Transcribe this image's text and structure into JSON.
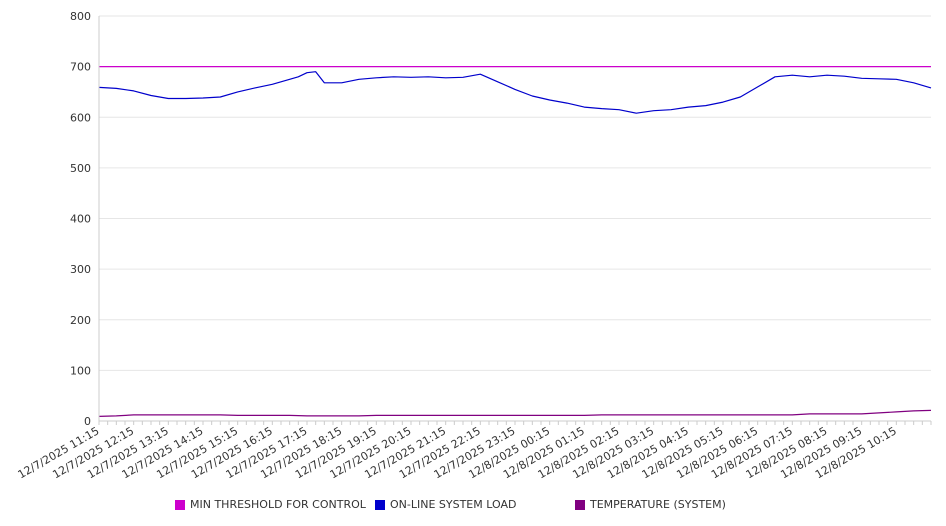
{
  "chart_data": {
    "type": "line",
    "title": "",
    "xlabel": "",
    "ylabel": "",
    "ylim": [
      0,
      800
    ],
    "yticks": [
      "0",
      "100",
      "200",
      "300",
      "400",
      "500",
      "600",
      "700",
      "800"
    ],
    "x_labels": [
      "12/7/2025 11:15",
      "12/7/2025 12:15",
      "12/7/2025 13:15",
      "12/7/2025 14:15",
      "12/7/2025 15:15",
      "12/7/2025 16:15",
      "12/7/2025 17:15",
      "12/7/2025 18:15",
      "12/7/2025 19:15",
      "12/7/2025 20:15",
      "12/7/2025 21:15",
      "12/7/2025 22:15",
      "12/7/2025 23:15",
      "12/8/2025 00:15",
      "12/8/2025 01:15",
      "12/8/2025 02:15",
      "12/8/2025 03:15",
      "12/8/2025 04:15",
      "12/8/2025 05:15",
      "12/8/2025 06:15",
      "12/8/2025 07:15",
      "12/8/2025 08:15",
      "12/8/2025 09:15",
      "12/8/2025 10:15"
    ],
    "x_start": "12/7/2025 11:15",
    "x_end": "12/8/2025 11:15",
    "grid": "horizontal",
    "legend_position": "bottom",
    "series": [
      {
        "name": "MIN THRESHOLD FOR CONTROL",
        "color": "#cc00cc",
        "x": [
          "12/7/2025 11:15",
          "12/8/2025 11:15"
        ],
        "y": [
          700,
          700
        ]
      },
      {
        "name": "ON-LINE SYSTEM LOAD",
        "color": "#0000cc",
        "x": [
          "12/7/2025 11:15",
          "12/7/2025 11:45",
          "12/7/2025 12:15",
          "12/7/2025 12:45",
          "12/7/2025 13:15",
          "12/7/2025 13:45",
          "12/7/2025 14:15",
          "12/7/2025 14:45",
          "12/7/2025 15:15",
          "12/7/2025 15:45",
          "12/7/2025 16:15",
          "12/7/2025 16:45",
          "12/7/2025 17:00",
          "12/7/2025 17:15",
          "12/7/2025 17:30",
          "12/7/2025 17:45",
          "12/7/2025 18:15",
          "12/7/2025 18:45",
          "12/7/2025 19:15",
          "12/7/2025 19:45",
          "12/7/2025 20:15",
          "12/7/2025 20:45",
          "12/7/2025 21:15",
          "12/7/2025 21:45",
          "12/7/2025 22:15",
          "12/7/2025 22:45",
          "12/7/2025 23:15",
          "12/7/2025 23:45",
          "12/8/2025 00:15",
          "12/8/2025 00:45",
          "12/8/2025 01:15",
          "12/8/2025 01:45",
          "12/8/2025 02:15",
          "12/8/2025 02:45",
          "12/8/2025 03:15",
          "12/8/2025 03:45",
          "12/8/2025 04:15",
          "12/8/2025 04:45",
          "12/8/2025 05:15",
          "12/8/2025 05:45",
          "12/8/2025 06:15",
          "12/8/2025 06:45",
          "12/8/2025 07:15",
          "12/8/2025 07:45",
          "12/8/2025 08:15",
          "12/8/2025 08:45",
          "12/8/2025 09:15",
          "12/8/2025 09:45",
          "12/8/2025 10:15",
          "12/8/2025 10:45",
          "12/8/2025 11:15"
        ],
        "y": [
          659,
          657,
          652,
          643,
          637,
          637,
          638,
          640,
          650,
          658,
          665,
          675,
          680,
          688,
          690,
          668,
          668,
          675,
          678,
          680,
          679,
          680,
          678,
          679,
          685,
          670,
          655,
          642,
          634,
          628,
          620,
          617,
          615,
          608,
          613,
          615,
          620,
          623,
          630,
          640,
          660,
          680,
          683,
          680,
          683,
          681,
          677,
          676,
          675,
          668,
          658
        ]
      },
      {
        "name": "TEMPERATURE (SYSTEM)",
        "color": "#800080",
        "x": [
          "12/7/2025 11:15",
          "12/7/2025 11:45",
          "12/7/2025 12:15",
          "12/7/2025 14:45",
          "12/7/2025 15:15",
          "12/7/2025 16:45",
          "12/7/2025 17:15",
          "12/7/2025 18:45",
          "12/7/2025 19:15",
          "12/8/2025 01:15",
          "12/8/2025 01:45",
          "12/8/2025 07:15",
          "12/8/2025 07:45",
          "12/8/2025 09:15",
          "12/8/2025 09:45",
          "12/8/2025 10:15",
          "12/8/2025 10:45",
          "12/8/2025 11:15"
        ],
        "y": [
          9,
          10,
          12,
          12,
          11,
          11,
          10,
          10,
          11,
          11,
          12,
          12,
          14,
          14,
          16,
          18,
          20,
          21
        ]
      }
    ]
  }
}
